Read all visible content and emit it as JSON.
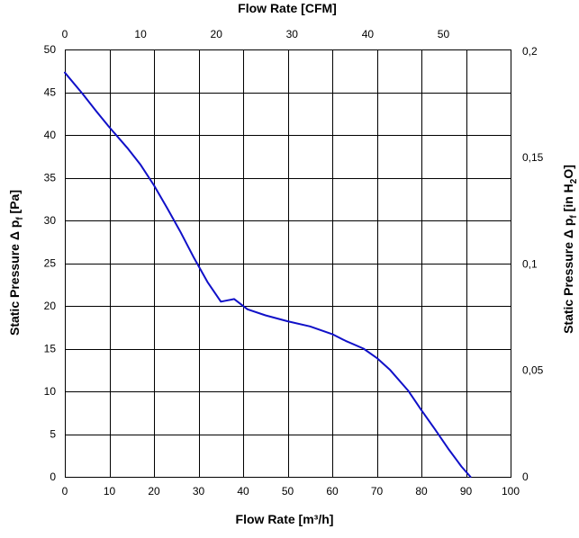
{
  "chart_data": {
    "type": "line",
    "title": "",
    "xlabel": "Flow Rate [m³/h]",
    "ylabel": "Static Pressure Δ pf [Pa]",
    "ylabel_parts": {
      "prefix": "Static Pressure Δ p",
      "sub": "f",
      "suffix": " [Pa]"
    },
    "x2label": "Flow Rate [CFM]",
    "y2label": "Static Pressure Δ pf [in H2O]",
    "y2label_parts": {
      "prefix": "Static Pressure Δ p",
      "sub1": "f",
      "middle": " [in H",
      "sub2": "2",
      "suffix": "O]"
    },
    "xlim": [
      0,
      100
    ],
    "ylim": [
      0,
      50
    ],
    "x2lim": [
      0,
      58.86
    ],
    "y2lim": [
      0,
      0.2008
    ],
    "x_ticks": [
      0,
      10,
      20,
      30,
      40,
      50,
      60,
      70,
      80,
      90,
      100
    ],
    "y_ticks": [
      0,
      5,
      10,
      15,
      20,
      25,
      30,
      35,
      40,
      45,
      50
    ],
    "x2_ticks": [
      0,
      10,
      20,
      30,
      40,
      50
    ],
    "x2_tick_labels": [
      "0",
      "10",
      "20",
      "30",
      "40",
      "50"
    ],
    "y2_ticks": [
      0,
      0.05,
      0.1,
      0.15,
      0.2
    ],
    "y2_tick_labels": [
      "0",
      "0,05",
      "0,1",
      "0,15",
      "0,2"
    ],
    "grid": true,
    "line_color": "#1010c8",
    "series": [
      {
        "x": [
          0,
          4,
          7,
          10,
          14,
          17,
          20,
          23,
          26,
          29,
          32,
          35,
          38,
          41,
          45,
          50,
          55,
          60,
          63,
          67,
          70,
          73,
          77,
          80,
          83,
          86,
          89,
          91
        ],
        "y": [
          47.3,
          44.8,
          42.8,
          40.9,
          38.5,
          36.5,
          34.1,
          31.4,
          28.6,
          25.6,
          22.8,
          20.5,
          20.8,
          19.6,
          18.9,
          18.2,
          17.6,
          16.7,
          15.9,
          15.0,
          13.9,
          12.5,
          10.1,
          7.8,
          5.6,
          3.3,
          1.2,
          0.0
        ]
      }
    ]
  }
}
